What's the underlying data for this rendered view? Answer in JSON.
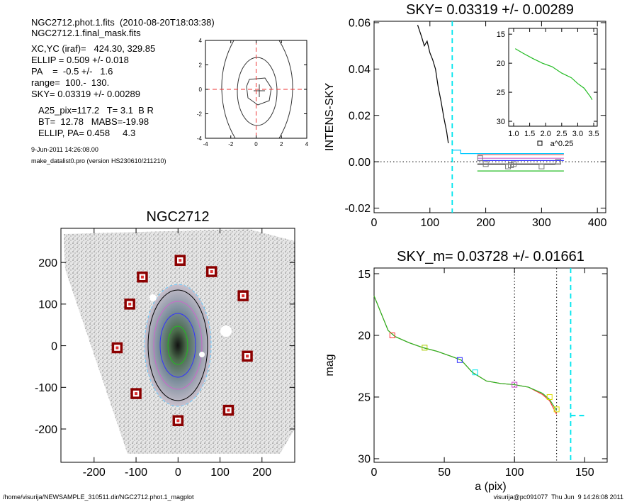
{
  "info": {
    "lines": [
      "NGC2712.phot.1.fits  (2010-08-20T18:03:38)",
      "NGC2712.1.final_mask.fits",
      "XC,YC (iraf)=   424.30, 329.85",
      "ELLIP = 0.509 +/- 0.018",
      "PA    =  -0.5 +/-   1.6",
      "range=  100.-  130.",
      "SKY= 0.03319 +/- 0.00289",
      "A25_pix=117.2   T= 3.1  B R",
      "BT=  12.78   MABS=-19.98",
      "ELLIP, PA= 0.458     4.3"
    ],
    "date": "9-Jun-2011 14:26:08.00",
    "program": "make_datalist0.pro (version HS230610/211210)"
  },
  "footer": {
    "left": "/home/visurija/NEWSAMPLE_310511.dir/NGC2712.phot.1_magplot",
    "right": "visurija@pc091077  Thu Jun  9 14:26:08 2011"
  },
  "chart_data": [
    {
      "type": "contour",
      "xlim": [
        -4,
        4
      ],
      "ylim": [
        -4,
        4
      ],
      "xticks": [
        -4,
        -2,
        0,
        2,
        4
      ],
      "yticks": [
        -4,
        -2,
        0,
        2,
        4
      ]
    },
    {
      "type": "line",
      "title": "SKY= 0.03319 +/- 0.00289",
      "ylabel": "INTENS-SKY",
      "xlim": [
        0,
        415
      ],
      "ylim": [
        -0.022,
        0.0606
      ],
      "xticks": [
        0,
        100,
        200,
        300,
        400
      ],
      "yticks": [
        -0.02,
        {
          "value": 0,
          "label": "0.00"
        },
        0.02,
        0.04,
        0.06
      ],
      "series": [
        {
          "color": "#000000",
          "x": [
            78,
            85,
            90,
            95,
            100,
            105,
            110,
            115,
            120,
            125,
            130,
            133
          ],
          "values": [
            0.059,
            0.054,
            0.05,
            0.052,
            0.047,
            0.044,
            0.04,
            0.032,
            0.026,
            0.019,
            0.013,
            0.008
          ]
        },
        {
          "color": "#00c8ff",
          "x": [
            140,
            155,
            155,
            340
          ],
          "values": [
            0.005,
            0.005,
            0.0035,
            0.0035
          ]
        },
        {
          "color": "#ff6666",
          "x": [
            185,
            340
          ],
          "values": [
            0.003,
            0.003
          ]
        },
        {
          "color": "#cc66cc",
          "x": [
            185,
            340
          ],
          "values": [
            0.0015,
            0.0015
          ]
        },
        {
          "color": "#3333ff",
          "x": [
            185,
            340
          ],
          "values": [
            0.0005,
            0.0005
          ]
        },
        {
          "color": "#000000",
          "x": [
            185,
            335
          ],
          "values": [
            -0.001,
            -0.001
          ]
        },
        {
          "color": "#22bb22",
          "x": [
            185,
            340
          ],
          "values": [
            -0.004,
            -0.004
          ]
        }
      ],
      "markers": {
        "color": "#777777",
        "x": [
          190,
          200,
          240,
          245,
          250,
          300,
          330
        ],
        "values": [
          0.0015,
          -0.001,
          -0.002,
          -0.0015,
          -0.001,
          -0.002,
          0
        ]
      },
      "hlines": [
        {
          "y": 0,
          "color": "#000000",
          "dash": "dotted"
        }
      ],
      "vlines": [
        {
          "x": 140,
          "color": "#00e5ee",
          "dash": "dashed"
        }
      ],
      "inset": {
        "xlim": [
          0.845,
          3.61
        ],
        "ylim": [
          30.85,
          14.0
        ],
        "xlabel": "a^0.25",
        "xticks": [
          {
            "value": 1,
            "label": "1.0"
          },
          1.5,
          {
            "value": 2,
            "label": "2.0"
          },
          2.5,
          {
            "value": 3,
            "label": "3.0"
          },
          3.5
        ],
        "yticks": [
          15,
          20,
          25,
          30
        ],
        "series": [
          {
            "color": "#22bb22",
            "x": [
              1.05,
              1.3,
              1.6,
              1.9,
              2.2,
              2.5,
              2.8,
              3.0,
              3.2,
              3.4,
              3.45
            ],
            "values": [
              17.5,
              18.3,
              19.2,
              20.0,
              20.6,
              21.7,
              22.5,
              23.5,
              24.3,
              25.8,
              26.3
            ]
          }
        ]
      }
    },
    {
      "type": "image",
      "title": "NGC2712",
      "xlim": [
        -279,
        278
      ],
      "ylim": [
        -280,
        282
      ],
      "xticks": [
        -200,
        -100,
        0,
        100,
        200
      ],
      "yticks": [
        -200,
        -100,
        0,
        100,
        200
      ],
      "markers": {
        "color": "#8b0000",
        "x": [
          5,
          -85,
          80,
          -115,
          155,
          -145,
          165,
          -100,
          120,
          0
        ],
        "values": [
          205,
          165,
          178,
          100,
          120,
          -5,
          -25,
          -115,
          -155,
          -180
        ]
      }
    },
    {
      "type": "line",
      "title": "SKY_m=  0.03728 +/- 0.01661",
      "xlabel": "a (pix)",
      "ylabel": "mag",
      "xlim": [
        0,
        166
      ],
      "ylim": [
        30.29,
        14.54
      ],
      "xticks": [
        0,
        50,
        100,
        150
      ],
      "yticks": [
        15,
        20,
        25,
        30
      ],
      "series": [
        {
          "color": "#ff3333",
          "x": [
            0,
            5,
            10,
            15,
            25,
            35,
            45,
            55,
            62,
            70,
            80,
            90,
            100,
            110,
            120,
            125,
            130
          ],
          "values": [
            16.8,
            18.2,
            19.6,
            20.1,
            20.6,
            21.0,
            21.3,
            21.7,
            22.0,
            23.0,
            23.7,
            23.9,
            24.0,
            24.2,
            24.8,
            25.3,
            26.4
          ]
        },
        {
          "color": "#22bb22",
          "x": [
            0,
            5,
            10,
            15,
            25,
            35,
            45,
            55,
            62,
            70,
            80,
            90,
            100,
            110,
            120,
            125,
            130
          ],
          "values": [
            16.8,
            18.2,
            19.6,
            20.1,
            20.6,
            21.0,
            21.3,
            21.7,
            22.0,
            23.0,
            23.7,
            23.9,
            24.0,
            24.2,
            24.7,
            25.2,
            26.1
          ]
        },
        {
          "color": "#00e5ee",
          "dash": "dashed",
          "x": [
            140,
            150
          ],
          "values": [
            26.5,
            26.5
          ]
        }
      ],
      "markers": {
        "colors": [
          "#ff3333",
          "#aacc00",
          "#3333ff",
          "#00e5ee",
          "#cc44cc",
          "#dddd00",
          "#dddd00"
        ],
        "x": [
          13,
          36,
          61,
          72,
          100,
          125,
          130
        ],
        "values": [
          20.0,
          21.0,
          22.0,
          23.0,
          24.0,
          25.0,
          26.0
        ]
      },
      "vlines": [
        {
          "x": 100,
          "color": "#000000",
          "dash": "dotted"
        },
        {
          "x": 130,
          "color": "#000000",
          "dash": "dotted"
        },
        {
          "x": 140,
          "color": "#00e5ee",
          "dash": "dashed"
        }
      ]
    }
  ]
}
